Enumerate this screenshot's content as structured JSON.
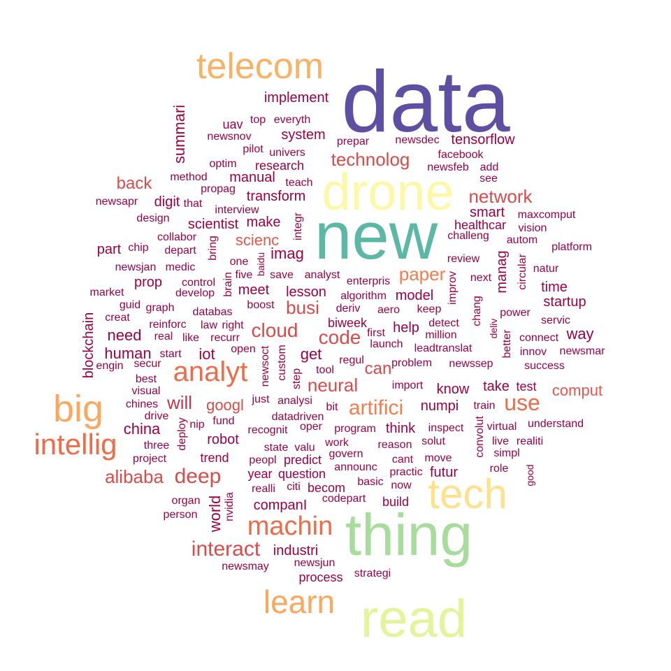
{
  "words": [
    {
      "text": "data",
      "color": "#5e4fa2"
    },
    {
      "text": "new",
      "color": "#5bb8a4"
    },
    {
      "text": "drone",
      "color": "#fbf8a8"
    },
    {
      "text": "thing",
      "color": "#a8dc9c"
    },
    {
      "text": "read",
      "color": "#e3f49a"
    },
    {
      "text": "tech",
      "color": "#fde18c"
    },
    {
      "text": "telecom",
      "color": "#f9b264"
    },
    {
      "text": "big",
      "color": "#f9a85e"
    },
    {
      "text": "intellig",
      "color": "#ee6c48"
    },
    {
      "text": "learn",
      "color": "#f9a85e"
    },
    {
      "text": "analyt",
      "color": "#ee6c48"
    },
    {
      "text": "machin",
      "color": "#ee6c48"
    },
    {
      "text": "artifici",
      "color": "#f47d4e"
    },
    {
      "text": "deep",
      "color": "#d94b4a"
    },
    {
      "text": "interact",
      "color": "#d94b4a"
    },
    {
      "text": "paper",
      "color": "#f47d4e"
    },
    {
      "text": "use",
      "color": "#ee6c48"
    },
    {
      "text": "network",
      "color": "#d94b4a"
    },
    {
      "text": "technolog",
      "color": "#d94b4a"
    },
    {
      "text": "cloud",
      "color": "#d94b4a"
    },
    {
      "text": "code",
      "color": "#d94b4a"
    },
    {
      "text": "neural",
      "color": "#d94b4a"
    },
    {
      "text": "busi",
      "color": "#d94b4a"
    },
    {
      "text": "alibaba",
      "color": "#d94b4a"
    },
    {
      "text": "will",
      "color": "#c7344e"
    },
    {
      "text": "googl",
      "color": "#d94b4a"
    },
    {
      "text": "comput",
      "color": "#e4574b"
    },
    {
      "text": "back",
      "color": "#d94b4a"
    },
    {
      "text": "scienc",
      "color": "#e4574b"
    },
    {
      "text": "can",
      "color": "#d94b4a"
    },
    {
      "text": "implement",
      "color": "#9e0142"
    },
    {
      "text": "system",
      "color": "#9e0142"
    },
    {
      "text": "tensorflow",
      "color": "#9e0142"
    },
    {
      "text": "summari",
      "color": "#9e0142"
    },
    {
      "text": "human",
      "color": "#9e0142"
    },
    {
      "text": "need",
      "color": "#9e0142"
    },
    {
      "text": "china",
      "color": "#9e0142"
    },
    {
      "text": "get",
      "color": "#9e0142"
    },
    {
      "text": "robot",
      "color": "#9e0142"
    },
    {
      "text": "companI",
      "color": "#9e0142"
    },
    {
      "text": "industri",
      "color": "#9e0142"
    },
    {
      "text": "manag",
      "color": "#9e0142"
    },
    {
      "text": "blockchain",
      "color": "#9e0142"
    },
    {
      "text": "iot",
      "color": "#9e0142"
    },
    {
      "text": "imag",
      "color": "#9e0142"
    },
    {
      "text": "transform",
      "color": "#9e0142"
    },
    {
      "text": "scientist",
      "color": "#9e0142"
    },
    {
      "text": "make",
      "color": "#9e0142"
    },
    {
      "text": "manual",
      "color": "#9e0142"
    },
    {
      "text": "research",
      "color": "#9e0142"
    },
    {
      "text": "digit",
      "color": "#9e0142"
    },
    {
      "text": "smart",
      "color": "#9e0142"
    },
    {
      "text": "healthcar",
      "color": "#9e0142"
    },
    {
      "text": "model",
      "color": "#9e0142"
    },
    {
      "text": "time",
      "color": "#9e0142"
    },
    {
      "text": "startup",
      "color": "#9e0142"
    },
    {
      "text": "way",
      "color": "#9e0142"
    },
    {
      "text": "help",
      "color": "#9e0142"
    },
    {
      "text": "numpi",
      "color": "#9e0142"
    },
    {
      "text": "know",
      "color": "#9e0142"
    },
    {
      "text": "take",
      "color": "#9e0142"
    },
    {
      "text": "think",
      "color": "#9e0142"
    },
    {
      "text": "meet",
      "color": "#9e0142"
    },
    {
      "text": "lesson",
      "color": "#9e0142"
    },
    {
      "text": "part",
      "color": "#9e0142"
    },
    {
      "text": "prop",
      "color": "#9e0142"
    },
    {
      "text": "biweek",
      "color": "#9e0142"
    },
    {
      "text": "futur",
      "color": "#9e0142"
    },
    {
      "text": "build",
      "color": "#9e0142"
    },
    {
      "text": "process",
      "color": "#9e0142"
    },
    {
      "text": "year",
      "color": "#9e0142"
    },
    {
      "text": "question",
      "color": "#9e0142"
    },
    {
      "text": "becom",
      "color": "#9e0142"
    },
    {
      "text": "predict",
      "color": "#9e0142"
    },
    {
      "text": "trend",
      "color": "#9e0142"
    },
    {
      "text": "world",
      "color": "#9e0142"
    },
    {
      "text": "everyth",
      "color": "#9e0142"
    },
    {
      "text": "top",
      "color": "#9e0142"
    },
    {
      "text": "uav",
      "color": "#9e0142"
    },
    {
      "text": "teach",
      "color": "#9e0142"
    },
    {
      "text": "one",
      "color": "#9e0142"
    },
    {
      "text": "aero",
      "color": "#9e0142"
    },
    {
      "text": "launch",
      "color": "#9e0142"
    },
    {
      "text": "test",
      "color": "#9e0142"
    },
    {
      "text": "train",
      "color": "#9e0142"
    },
    {
      "text": "solut",
      "color": "#9e0142"
    },
    {
      "text": "platform",
      "color": "#9e0142"
    },
    {
      "text": "natur",
      "color": "#9e0142"
    },
    {
      "text": "servic",
      "color": "#9e0142"
    },
    {
      "text": "newsmar",
      "color": "#9e0142"
    },
    {
      "text": "success",
      "color": "#9e0142"
    },
    {
      "text": "understand",
      "color": "#9e0142"
    },
    {
      "text": "realiti",
      "color": "#9e0142"
    },
    {
      "text": "role",
      "color": "#9e0142"
    },
    {
      "text": "custom",
      "color": "#9e0142"
    },
    {
      "text": "newsoct",
      "color": "#9e0142"
    },
    {
      "text": "brain",
      "color": "#9e0142"
    },
    {
      "text": "drive",
      "color": "#9e0142"
    },
    {
      "text": "three",
      "color": "#9e0142"
    },
    {
      "text": "best",
      "color": "#9e0142"
    },
    {
      "text": "visual",
      "color": "#9e0142"
    },
    {
      "text": "newsmay",
      "color": "#9e0142"
    },
    {
      "text": "newsjun",
      "color": "#9e0142"
    },
    {
      "text": "strategi",
      "color": "#9e0142"
    },
    {
      "text": "reason",
      "color": "#9e0142"
    },
    {
      "text": "move",
      "color": "#9e0142"
    },
    {
      "text": "cant",
      "color": "#9e0142"
    },
    {
      "text": "now",
      "color": "#9e0142"
    },
    {
      "text": "practic",
      "color": "#9e0142"
    },
    {
      "text": "basic",
      "color": "#9e0142"
    },
    {
      "text": "inspect",
      "color": "#9e0142"
    },
    {
      "text": "virtual",
      "color": "#9e0142"
    },
    {
      "text": "convolut",
      "color": "#9e0142"
    },
    {
      "text": "chang",
      "color": "#9e0142"
    },
    {
      "text": "better",
      "color": "#9e0142"
    },
    {
      "text": "circular",
      "color": "#9e0142"
    },
    {
      "text": "next",
      "color": "#9e0142"
    },
    {
      "text": "power",
      "color": "#9e0142"
    },
    {
      "text": "innov",
      "color": "#9e0142"
    },
    {
      "text": "connect",
      "color": "#9e0142"
    },
    {
      "text": "autom",
      "color": "#9e0142"
    },
    {
      "text": "vision",
      "color": "#9e0142"
    },
    {
      "text": "maxcomput",
      "color": "#9e0142"
    },
    {
      "text": "challeng",
      "color": "#9e0142"
    },
    {
      "text": "review",
      "color": "#9e0142"
    },
    {
      "text": "improv",
      "color": "#9e0142"
    },
    {
      "text": "keep",
      "color": "#9e0142"
    },
    {
      "text": "detect",
      "color": "#9e0142"
    },
    {
      "text": "million",
      "color": "#9e0142"
    },
    {
      "text": "leadtranslat",
      "color": "#9e0142"
    },
    {
      "text": "newssep",
      "color": "#9e0142"
    },
    {
      "text": "problem",
      "color": "#9e0142"
    },
    {
      "text": "import",
      "color": "#9e0142"
    },
    {
      "text": "first",
      "color": "#9e0142"
    },
    {
      "text": "deriv",
      "color": "#9e0142"
    },
    {
      "text": "algorithm",
      "color": "#9e0142"
    },
    {
      "text": "enterpris",
      "color": "#9e0142"
    },
    {
      "text": "analyst",
      "color": "#9e0142"
    },
    {
      "text": "save",
      "color": "#9e0142"
    },
    {
      "text": "five",
      "color": "#9e0142"
    },
    {
      "text": "baidu",
      "color": "#9e0142"
    },
    {
      "text": "boost",
      "color": "#9e0142"
    },
    {
      "text": "databas",
      "color": "#9e0142"
    },
    {
      "text": "develop",
      "color": "#9e0142"
    },
    {
      "text": "control",
      "color": "#9e0142"
    },
    {
      "text": "graph",
      "color": "#9e0142"
    },
    {
      "text": "guid",
      "color": "#9e0142"
    },
    {
      "text": "creat",
      "color": "#9e0142"
    },
    {
      "text": "market",
      "color": "#9e0142"
    },
    {
      "text": "newsjan",
      "color": "#9e0142"
    },
    {
      "text": "medic",
      "color": "#9e0142"
    },
    {
      "text": "chip",
      "color": "#9e0142"
    },
    {
      "text": "depart",
      "color": "#9e0142"
    },
    {
      "text": "collabor",
      "color": "#9e0142"
    },
    {
      "text": "bring",
      "color": "#9e0142"
    },
    {
      "text": "design",
      "color": "#9e0142"
    },
    {
      "text": "interview",
      "color": "#9e0142"
    },
    {
      "text": "newsapr",
      "color": "#9e0142"
    },
    {
      "text": "that",
      "color": "#9e0142"
    },
    {
      "text": "propag",
      "color": "#9e0142"
    },
    {
      "text": "method",
      "color": "#9e0142"
    },
    {
      "text": "optim",
      "color": "#9e0142"
    },
    {
      "text": "pilot",
      "color": "#9e0142"
    },
    {
      "text": "univers",
      "color": "#9e0142"
    },
    {
      "text": "newsnov",
      "color": "#9e0142"
    },
    {
      "text": "prepar",
      "color": "#9e0142"
    },
    {
      "text": "newsdec",
      "color": "#9e0142"
    },
    {
      "text": "facebook",
      "color": "#9e0142"
    },
    {
      "text": "newsfeb",
      "color": "#9e0142"
    },
    {
      "text": "add",
      "color": "#9e0142"
    },
    {
      "text": "see",
      "color": "#9e0142"
    },
    {
      "text": "integr",
      "color": "#9e0142"
    },
    {
      "text": "reinforc",
      "color": "#9e0142"
    },
    {
      "text": "real",
      "color": "#9e0142"
    },
    {
      "text": "like",
      "color": "#9e0142"
    },
    {
      "text": "law",
      "color": "#9e0142"
    },
    {
      "text": "right",
      "color": "#9e0142"
    },
    {
      "text": "recurr",
      "color": "#9e0142"
    },
    {
      "text": "open",
      "color": "#9e0142"
    },
    {
      "text": "engin",
      "color": "#9e0142"
    },
    {
      "text": "secur",
      "color": "#9e0142"
    },
    {
      "text": "start",
      "color": "#9e0142"
    },
    {
      "text": "chines",
      "color": "#9e0142"
    },
    {
      "text": "deploy",
      "color": "#9e0142"
    },
    {
      "text": "nip",
      "color": "#9e0142"
    },
    {
      "text": "fund",
      "color": "#9e0142"
    },
    {
      "text": "just",
      "color": "#9e0142"
    },
    {
      "text": "analysi",
      "color": "#9e0142"
    },
    {
      "text": "datadriven",
      "color": "#9e0142"
    },
    {
      "text": "recognit",
      "color": "#9e0142"
    },
    {
      "text": "oper",
      "color": "#9e0142"
    },
    {
      "text": "step",
      "color": "#9e0142"
    },
    {
      "text": "tool",
      "color": "#9e0142"
    },
    {
      "text": "regul",
      "color": "#9e0142"
    },
    {
      "text": "bit",
      "color": "#9e0142"
    },
    {
      "text": "program",
      "color": "#9e0142"
    },
    {
      "text": "work",
      "color": "#9e0142"
    },
    {
      "text": "govern",
      "color": "#9e0142"
    },
    {
      "text": "state",
      "color": "#9e0142"
    },
    {
      "text": "valu",
      "color": "#9e0142"
    },
    {
      "text": "project",
      "color": "#9e0142"
    },
    {
      "text": "peopl",
      "color": "#9e0142"
    },
    {
      "text": "announc",
      "color": "#9e0142"
    },
    {
      "text": "realli",
      "color": "#9e0142"
    },
    {
      "text": "citi",
      "color": "#9e0142"
    },
    {
      "text": "codepart",
      "color": "#9e0142"
    },
    {
      "text": "organ",
      "color": "#9e0142"
    },
    {
      "text": "person",
      "color": "#9e0142"
    },
    {
      "text": "nvidia",
      "color": "#9e0142"
    },
    {
      "text": "live",
      "color": "#9e0142"
    },
    {
      "text": "simpl",
      "color": "#9e0142"
    },
    {
      "text": "good",
      "color": "#9e0142"
    },
    {
      "text": "deliv",
      "color": "#9e0142"
    }
  ]
}
